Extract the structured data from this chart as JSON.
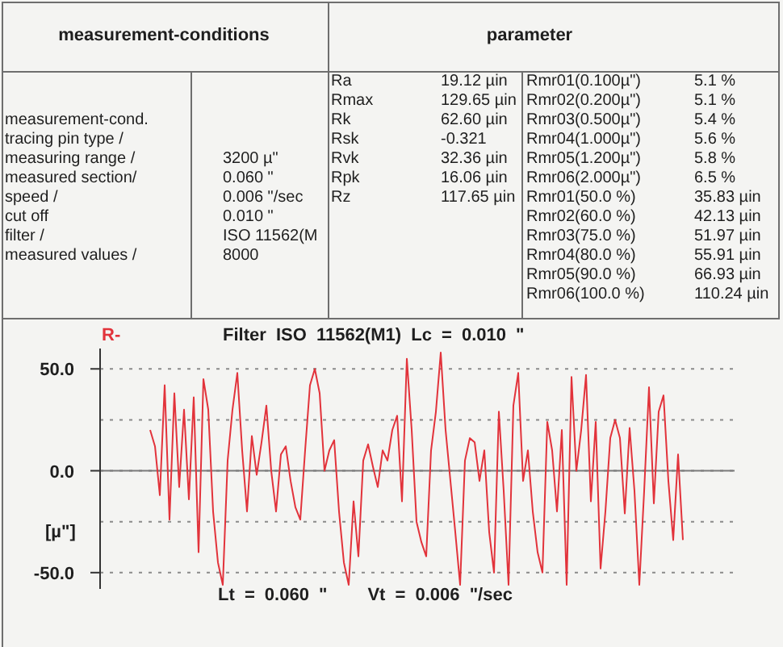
{
  "chart_data": [
    {
      "type": "other",
      "title": "measurement-conditions",
      "subtitle": "measurement-cond.",
      "annotations": [
        "tracing pin type /",
        "measuring range /\t3200 µ\"",
        "measured section/\t0.060 \"",
        "speed /\t0.006 \"/sec",
        "cut off\t0.010 \"",
        "filter /\tISO 11562(M",
        "measured values /\t8000"
      ]
    },
    {
      "type": "other",
      "title": "parameter",
      "annotations": [
        "Ra\t19.12 µin",
        "Rmax\t129.65 µin",
        "Rk\t62.60 µin",
        "Rsk\t-0.321",
        "Rvk\t32.36 µin",
        "Rpk\t16.06 µin",
        "Rz\t117.65 µin"
      ]
    },
    {
      "type": "other",
      "annotations": [
        "Rmr01(0.100µ\")\t5.1 %",
        "Rmr02(0.200µ\")\t5.1 %",
        "Rmr03(0.500µ\")\t5.4 %",
        "Rmr04(1.000µ\")\t5.6 %",
        "Rmr05(1.200µ\")\t5.8 %",
        "Rmr06(2.000µ\")\t6.5 %",
        "Rmr01(50.0 %)\t35.83 µin",
        "Rmr02(60.0 %)\t42.13 µin",
        "Rmr03(75.0 %)\t51.97 µin",
        "Rmr04(80.0 %)\t55.91 µin",
        "Rmr05(90.0 %)\t66.93 µin",
        "Rmr06(100.0 %)\t110.24 µin"
      ]
    },
    {
      "type": "line",
      "title": "Filter ISO 11562(M1) Lc = 0.010 \"",
      "ylabel": "[µ\"]",
      "categories": [
        null,
        null,
        null,
        null,
        null,
        null,
        null,
        null,
        null,
        null,
        null,
        null,
        null,
        null,
        null,
        null,
        null,
        null,
        null,
        null,
        null,
        null,
        null,
        null,
        null,
        null,
        null,
        null,
        null,
        null,
        null,
        null,
        null,
        null,
        null,
        null,
        null,
        null,
        null,
        null,
        null,
        null,
        null,
        null,
        null,
        null,
        null,
        null,
        null,
        null,
        null,
        null,
        null,
        null,
        null,
        null,
        null,
        null,
        null,
        null,
        null,
        null,
        null,
        null,
        null,
        null,
        null,
        null,
        null,
        null,
        null,
        null,
        null,
        null,
        null,
        null,
        null,
        null,
        null,
        null,
        null,
        null,
        null,
        null,
        null,
        null,
        null,
        null,
        null,
        null,
        null,
        null,
        null,
        null,
        null,
        null,
        null,
        null,
        null,
        null,
        null,
        null,
        null,
        null,
        null,
        null,
        null,
        null,
        null,
        null,
        null
      ],
      "series": [
        {
          "name": "R-",
          "color": "#e2333b",
          "values": [
            20,
            12,
            -12,
            42,
            -24,
            38,
            -8,
            30,
            -14,
            36,
            -40,
            45,
            30,
            -20,
            -45,
            -56,
            5,
            30,
            48,
            10,
            -20,
            17,
            -2,
            14,
            32,
            0,
            -20,
            8,
            12,
            -5,
            -18,
            -24,
            10,
            42,
            50,
            38,
            0,
            10,
            15,
            -20,
            -45,
            -56,
            -15,
            -42,
            5,
            13,
            2,
            -8,
            10,
            5,
            20,
            27,
            -15,
            55,
            20,
            -25,
            -35,
            -42,
            10,
            29,
            58,
            20,
            -5,
            -30,
            -56,
            5,
            16,
            14,
            -5,
            10,
            -30,
            -50,
            29,
            -10,
            -56,
            32,
            48,
            -5,
            10,
            -20,
            -40,
            -50,
            24,
            10,
            -20,
            20,
            -56,
            46,
            0,
            20,
            47,
            -15,
            24,
            -48,
            -20,
            16,
            25,
            16,
            -21,
            21,
            -10,
            -56,
            -10,
            41,
            -16,
            29,
            37,
            -5,
            -34,
            8,
            -34
          ]
        }
      ],
      "ylim": [
        -58,
        60
      ],
      "yticks": [
        {
          "value": -50,
          "label": "-50.0"
        },
        {
          "value": -25,
          "label": null
        },
        {
          "value": 0,
          "label": "0.0"
        },
        {
          "value": 25,
          "label": null
        },
        {
          "value": 50,
          "label": "50.0"
        }
      ],
      "grid": "y",
      "ref_lines": [
        {
          "axis": "y",
          "value": 0,
          "color": "#7a7a7a"
        }
      ],
      "annotations": [
        "Lt = 0.060 \"",
        "Vt = 0.006 \"/sec"
      ]
    }
  ]
}
